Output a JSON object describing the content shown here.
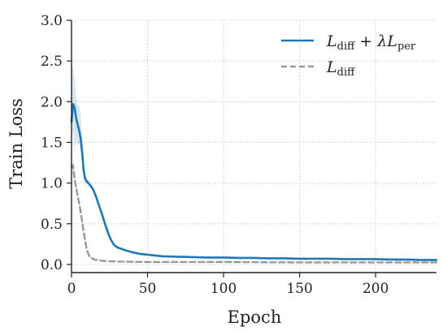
{
  "chart_data": {
    "type": "line",
    "title": "",
    "xlabel": "Epoch",
    "ylabel": "Train Loss",
    "xlim": [
      0,
      240
    ],
    "ylim": [
      -0.1,
      3.0
    ],
    "xticks": [
      0,
      50,
      100,
      150,
      200
    ],
    "yticks": [
      0.0,
      0.5,
      1.0,
      1.5,
      2.0,
      2.5,
      3.0
    ],
    "xtick_labels": [
      "0",
      "50",
      "100",
      "150",
      "200"
    ],
    "ytick_labels": [
      "0.0",
      "0.5",
      "1.0",
      "1.5",
      "2.0",
      "2.5",
      "3.0"
    ],
    "grid": true,
    "legend_position": "top-right",
    "series": [
      {
        "name": "L_diff + λL_per",
        "legend": {
          "main": "L",
          "sub1": "diff",
          "mid": " + λL",
          "sub2": "per"
        },
        "color": "#1f77b4",
        "style": "solid",
        "x": [
          0,
          1,
          2,
          3,
          4,
          5,
          6,
          7,
          8,
          9,
          10,
          12,
          14,
          16,
          18,
          20,
          22,
          24,
          26,
          28,
          30,
          33,
          36,
          40,
          45,
          50,
          55,
          60,
          70,
          80,
          90,
          100,
          110,
          120,
          130,
          140,
          150,
          160,
          170,
          180,
          190,
          200,
          210,
          220,
          230,
          240
        ],
        "y": [
          1.75,
          1.97,
          1.93,
          1.8,
          1.72,
          1.65,
          1.55,
          1.38,
          1.15,
          1.05,
          1.02,
          0.98,
          0.93,
          0.84,
          0.73,
          0.62,
          0.5,
          0.39,
          0.3,
          0.24,
          0.21,
          0.19,
          0.17,
          0.15,
          0.13,
          0.12,
          0.11,
          0.1,
          0.095,
          0.09,
          0.085,
          0.085,
          0.08,
          0.08,
          0.075,
          0.075,
          0.07,
          0.07,
          0.07,
          0.065,
          0.065,
          0.065,
          0.06,
          0.06,
          0.055,
          0.055
        ],
        "band_x": [
          0,
          1,
          2,
          3,
          4,
          5,
          6,
          7,
          8,
          9,
          10,
          12,
          14
        ],
        "band_lower": [
          1.55,
          1.65,
          1.4,
          1.55,
          1.45,
          1.5,
          1.4,
          1.25,
          1.08,
          1.0,
          0.99,
          0.95,
          0.91
        ],
        "band_upper": [
          2.45,
          2.4,
          2.3,
          2.05,
          1.95,
          1.95,
          1.85,
          1.55,
          1.25,
          1.12,
          1.06,
          1.02,
          0.96
        ]
      },
      {
        "name": "L_diff",
        "legend": {
          "main": "L",
          "sub1": "diff"
        },
        "color": "#999999",
        "style": "dashed",
        "x": [
          0,
          1,
          2,
          4,
          6,
          8,
          10,
          12,
          15,
          20,
          30,
          50,
          100,
          150,
          200,
          240
        ],
        "y": [
          1.2,
          1.22,
          1.05,
          0.85,
          0.65,
          0.4,
          0.18,
          0.09,
          0.06,
          0.045,
          0.035,
          0.03,
          0.03,
          0.025,
          0.025,
          0.025
        ]
      }
    ]
  }
}
